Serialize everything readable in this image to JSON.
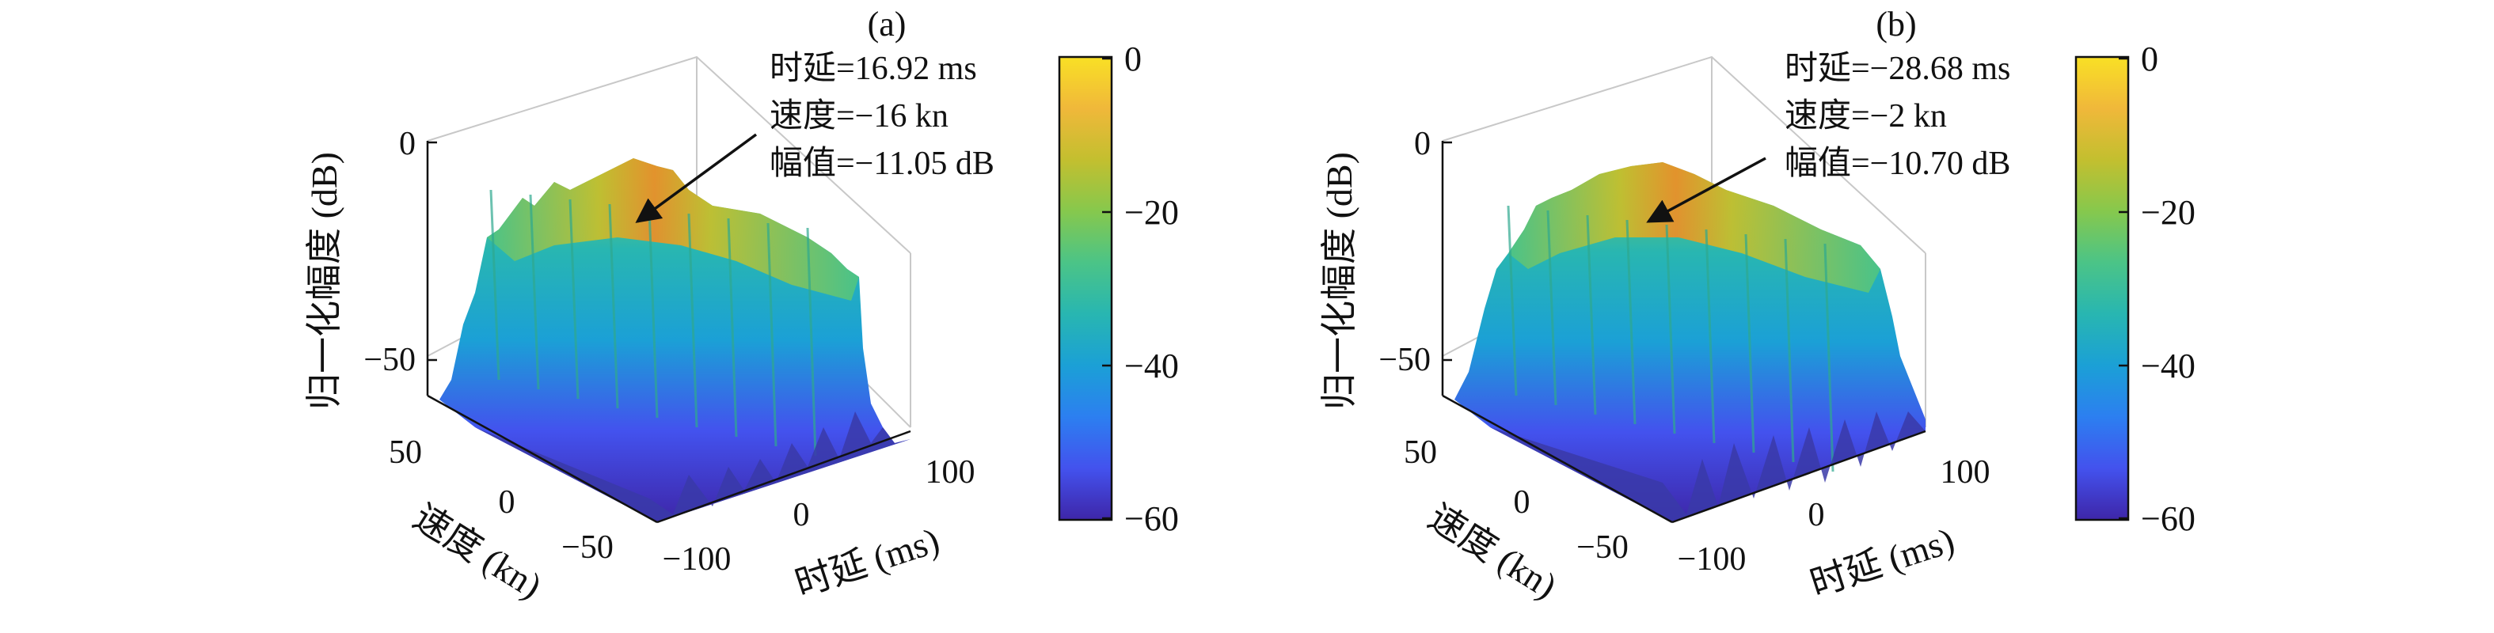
{
  "colors": {
    "colormap": [
      "#3e26a8",
      "#4352ee",
      "#2c7ff0",
      "#1ba0d6",
      "#28b6b1",
      "#4bc487",
      "#86c84d",
      "#c3bf2f",
      "#f0b83a",
      "#f9e025"
    ],
    "peak_orange": "#e8902a",
    "axis": "#111111",
    "box": "#c8c8c8"
  },
  "chart_data": [
    {
      "type": "surface3d",
      "panel_label": "(a)",
      "zlabel": "归一化幅度 (dB)",
      "xlabel": "时延 (ms)",
      "ylabel": "速度 (kn)",
      "x_ticks": [
        "−100",
        "0",
        "100"
      ],
      "y_ticks": [
        "50",
        "0",
        "−50"
      ],
      "z_ticks": [
        "0",
        "−50"
      ],
      "xlim": [
        -100,
        100
      ],
      "ylim": [
        -60,
        60
      ],
      "zlim": [
        -60,
        0
      ],
      "colorbar_ticks": [
        "0",
        "−20",
        "−40",
        "−60"
      ],
      "clim": [
        -60,
        0
      ],
      "annotation": {
        "lines": [
          "时延=16.92 ms",
          "速度=−16 kn",
          "幅值=−11.05 dB"
        ]
      },
      "peak": {
        "delay_ms": 16.92,
        "speed_kn": -16,
        "amplitude_db": -11.05
      }
    },
    {
      "type": "surface3d",
      "panel_label": "(b)",
      "zlabel": "归一化幅度 (dB)",
      "xlabel": "时延 (ms)",
      "ylabel": "速度 (kn)",
      "x_ticks": [
        "−100",
        "0",
        "100"
      ],
      "y_ticks": [
        "50",
        "0",
        "−50"
      ],
      "z_ticks": [
        "0",
        "−50"
      ],
      "xlim": [
        -100,
        100
      ],
      "ylim": [
        -60,
        60
      ],
      "zlim": [
        -60,
        0
      ],
      "colorbar_ticks": [
        "0",
        "−20",
        "−40",
        "−60"
      ],
      "clim": [
        -60,
        0
      ],
      "annotation": {
        "lines": [
          "时延=−28.68 ms",
          "速度=−2 kn",
          "幅值=−10.70 dB"
        ]
      },
      "peak": {
        "delay_ms": -28.68,
        "speed_kn": -2,
        "amplitude_db": -10.7
      }
    }
  ]
}
